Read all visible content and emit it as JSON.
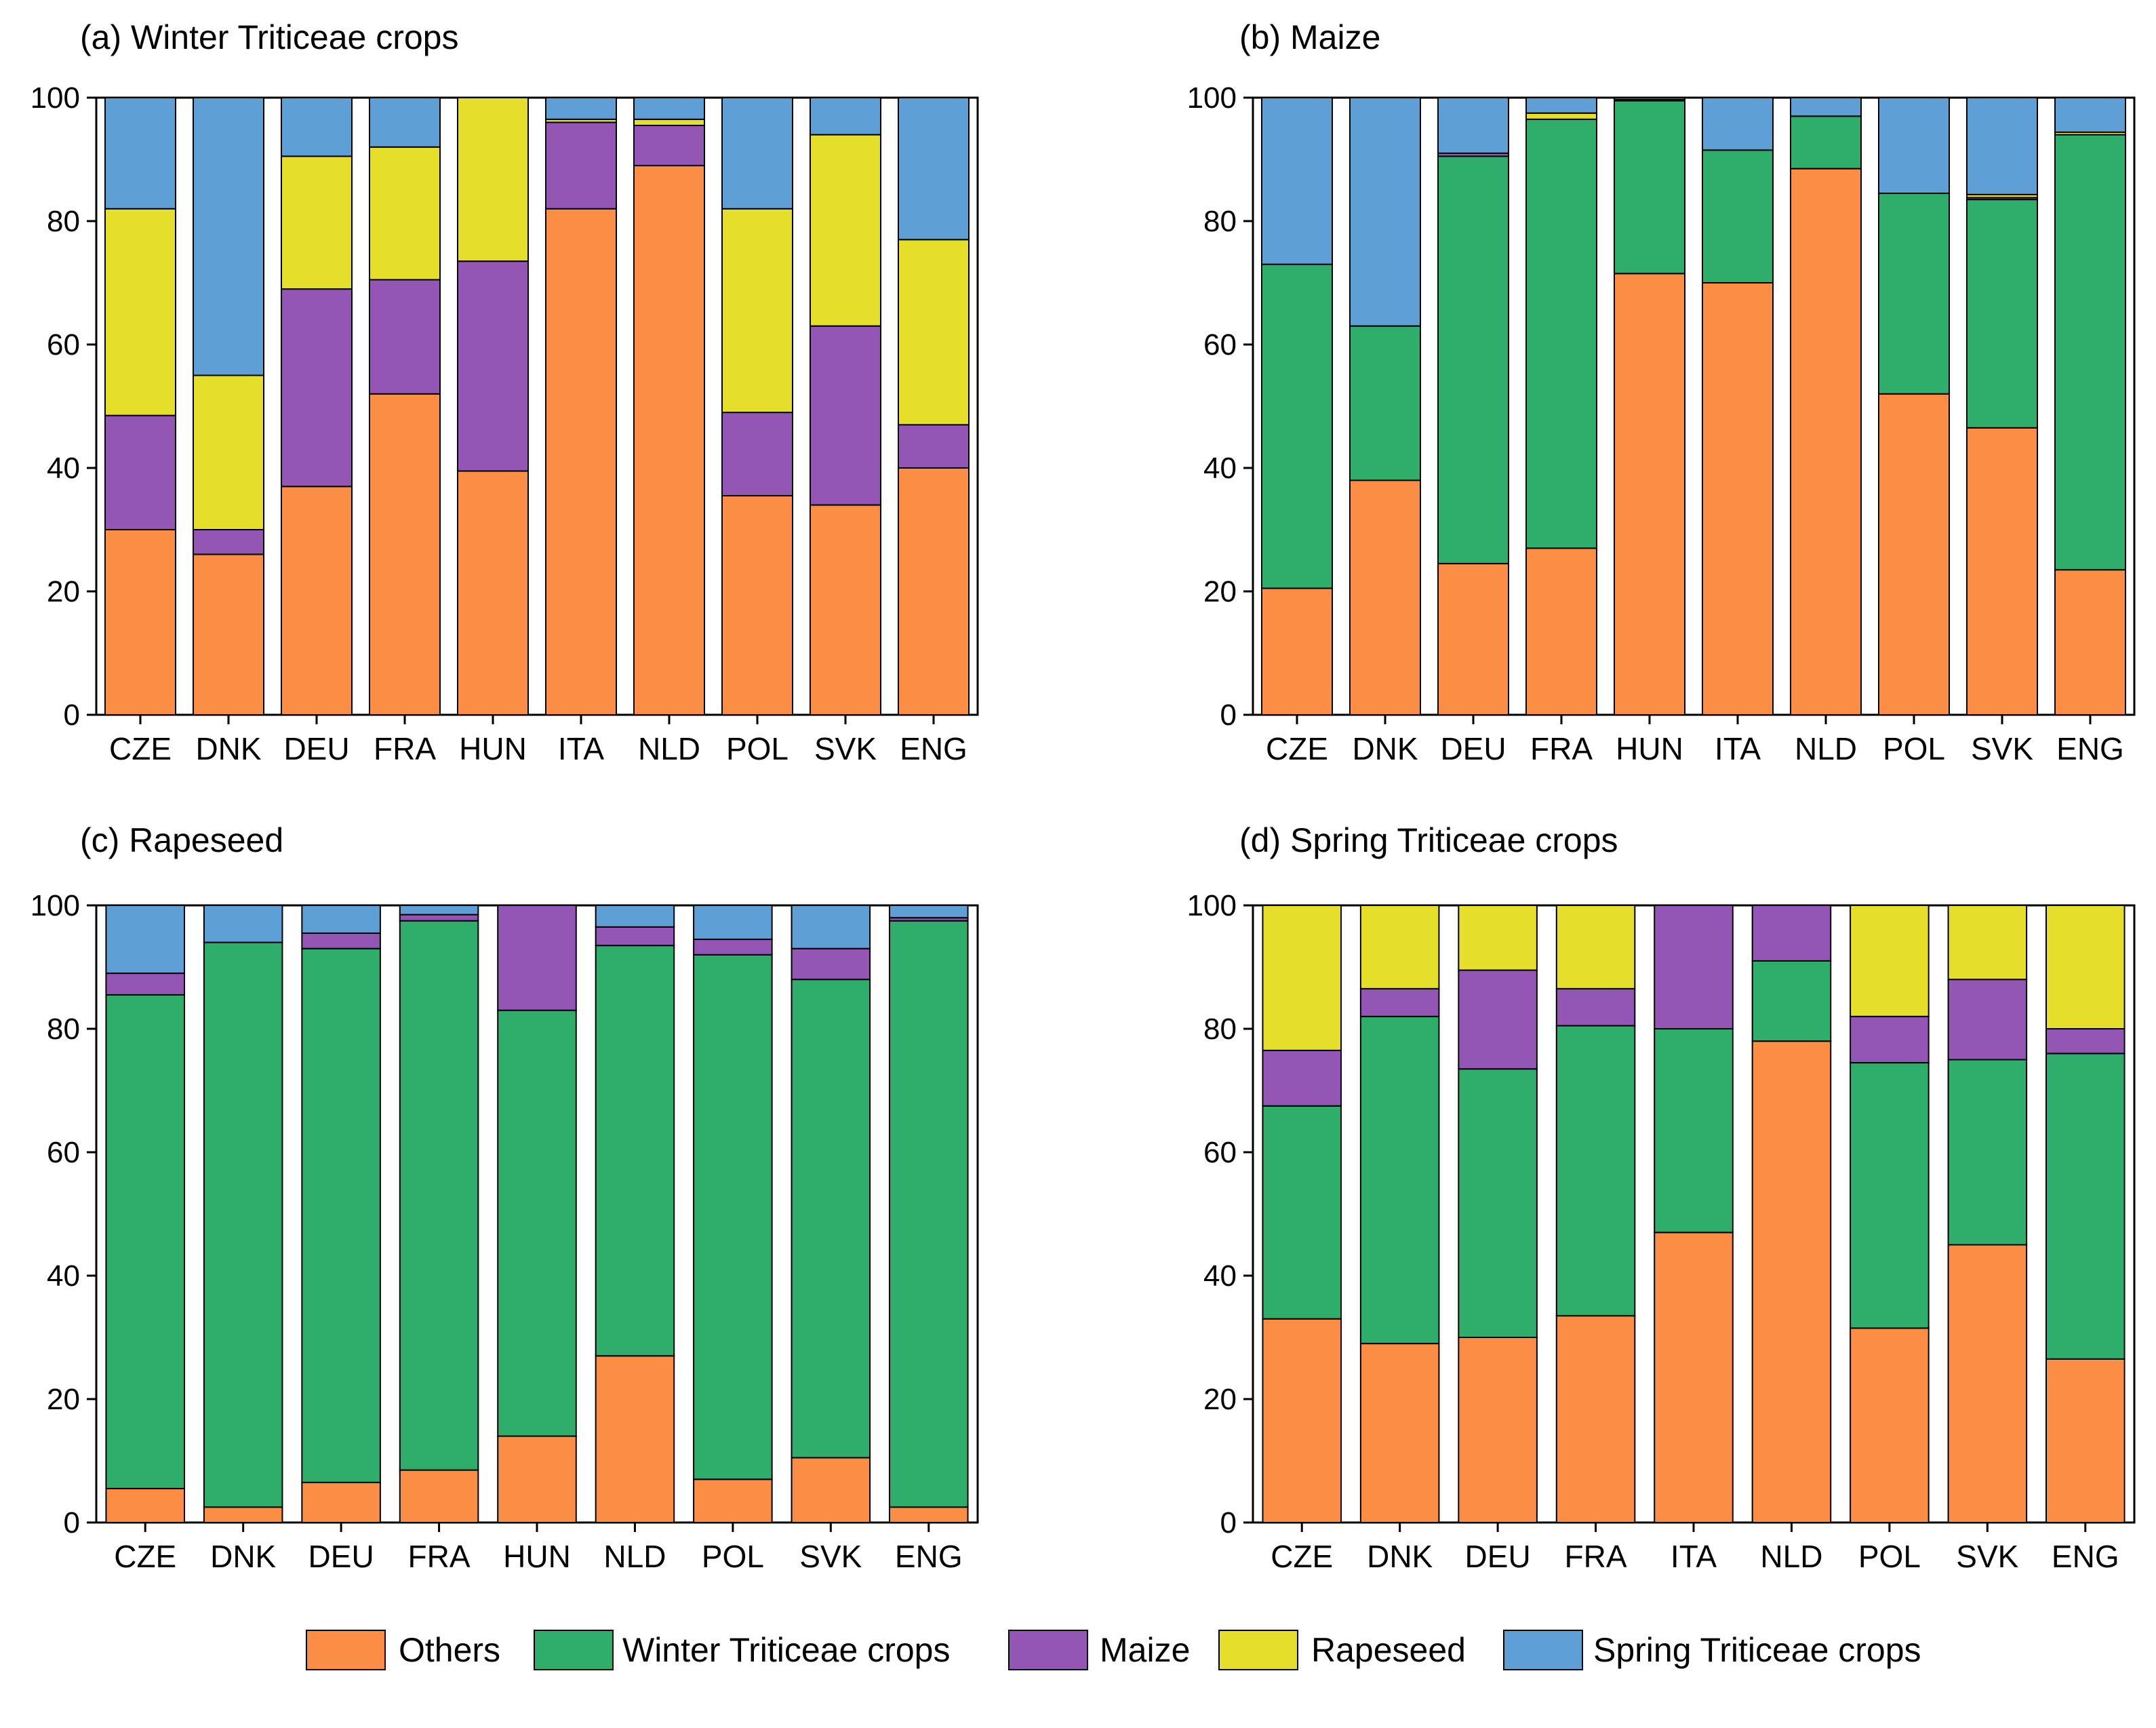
{
  "colors": {
    "Others": "#fb8d44",
    "Winter Triticeae crops": "#2ead6b",
    "Maize": "#9356b4",
    "Rapeseed": "#e5df2c",
    "Spring Triticeae crops": "#5e9fd6"
  },
  "legend": [
    "Others",
    "Winter Triticeae crops",
    "Maize",
    "Rapeseed",
    "Spring Triticeae crops"
  ],
  "chart_data": [
    {
      "type": "bar",
      "stacked": true,
      "title": "(a) Winter Triticeae crops",
      "ylim": [
        0,
        100
      ],
      "yticks": [
        "0",
        "20",
        "40",
        "60",
        "80",
        "100"
      ],
      "categories": [
        "CZE",
        "DNK",
        "DEU",
        "FRA",
        "HUN",
        "ITA",
        "NLD",
        "POL",
        "SVK",
        "ENG"
      ],
      "series": [
        {
          "name": "Others",
          "values": [
            30,
            26,
            37,
            52,
            39.5,
            82,
            89,
            35.5,
            34,
            40
          ]
        },
        {
          "name": "Winter Triticeae crops",
          "values": [
            0,
            0,
            0,
            0,
            0,
            0,
            0,
            0,
            0,
            0
          ]
        },
        {
          "name": "Maize",
          "values": [
            18.5,
            4,
            32,
            18.5,
            34,
            14,
            6.5,
            13.5,
            29,
            7
          ]
        },
        {
          "name": "Rapeseed",
          "values": [
            33.5,
            25,
            21.5,
            21.5,
            26.5,
            0.5,
            1,
            33,
            31,
            30
          ]
        },
        {
          "name": "Spring Triticeae crops",
          "values": [
            18,
            45,
            9.5,
            8,
            0,
            3.5,
            3.5,
            18,
            6,
            23
          ]
        }
      ]
    },
    {
      "type": "bar",
      "stacked": true,
      "title": "(b) Maize",
      "ylim": [
        0,
        100
      ],
      "yticks": [
        "0",
        "20",
        "40",
        "60",
        "80",
        "100"
      ],
      "categories": [
        "CZE",
        "DNK",
        "DEU",
        "FRA",
        "HUN",
        "ITA",
        "NLD",
        "POL",
        "SVK",
        "ENG"
      ],
      "series": [
        {
          "name": "Others",
          "values": [
            20.5,
            38,
            24.5,
            27,
            71.5,
            70,
            88.5,
            52,
            46.5,
            23.5
          ]
        },
        {
          "name": "Winter Triticeae crops",
          "values": [
            52.5,
            25,
            66,
            69.5,
            28,
            21.5,
            8.5,
            32.5,
            37,
            70.5
          ]
        },
        {
          "name": "Maize",
          "values": [
            0,
            0,
            0.5,
            0,
            0,
            0,
            0,
            0,
            0.3,
            0
          ]
        },
        {
          "name": "Rapeseed",
          "values": [
            0,
            0,
            0,
            1,
            0.2,
            0,
            0,
            0,
            0.5,
            0.4
          ]
        },
        {
          "name": "Spring Triticeae crops",
          "values": [
            27,
            37,
            9,
            2.5,
            0.3,
            8.5,
            3,
            15.5,
            15.7,
            5.6
          ]
        }
      ]
    },
    {
      "type": "bar",
      "stacked": true,
      "title": "(c) Rapeseed",
      "ylim": [
        0,
        100
      ],
      "yticks": [
        "0",
        "20",
        "40",
        "60",
        "80",
        "100"
      ],
      "categories": [
        "CZE",
        "DNK",
        "DEU",
        "FRA",
        "HUN",
        "NLD",
        "POL",
        "SVK",
        "ENG"
      ],
      "series": [
        {
          "name": "Others",
          "values": [
            5.5,
            2.5,
            6.5,
            8.5,
            14,
            27,
            7,
            10.5,
            2.5
          ]
        },
        {
          "name": "Winter Triticeae crops",
          "values": [
            80,
            91.5,
            86.5,
            89,
            69,
            66.5,
            85,
            77.5,
            95
          ]
        },
        {
          "name": "Maize",
          "values": [
            3.5,
            0,
            2.5,
            1,
            17,
            3,
            2.5,
            5,
            0.5
          ]
        },
        {
          "name": "Rapeseed",
          "values": [
            0,
            0,
            0,
            0,
            0,
            0,
            0,
            0,
            0
          ]
        },
        {
          "name": "Spring Triticeae crops",
          "values": [
            11,
            6,
            4.5,
            1.5,
            0,
            3.5,
            5.5,
            7,
            2
          ]
        }
      ]
    },
    {
      "type": "bar",
      "stacked": true,
      "title": "(d) Spring Triticeae crops",
      "ylim": [
        0,
        100
      ],
      "yticks": [
        "0",
        "20",
        "40",
        "60",
        "80",
        "100"
      ],
      "categories": [
        "CZE",
        "DNK",
        "DEU",
        "FRA",
        "ITA",
        "NLD",
        "POL",
        "SVK",
        "ENG"
      ],
      "series": [
        {
          "name": "Others",
          "values": [
            33,
            29,
            30,
            33.5,
            47,
            78,
            31.5,
            45,
            26.5
          ]
        },
        {
          "name": "Winter Triticeae crops",
          "values": [
            34.5,
            53,
            43.5,
            47,
            33,
            13,
            43,
            30,
            49.5
          ]
        },
        {
          "name": "Maize",
          "values": [
            9,
            4.5,
            16,
            6,
            20,
            9,
            7.5,
            13,
            4
          ]
        },
        {
          "name": "Rapeseed",
          "values": [
            23.5,
            13.5,
            10.5,
            13.5,
            0,
            0,
            18,
            12,
            20
          ]
        },
        {
          "name": "Spring Triticeae crops",
          "values": [
            0,
            0,
            0,
            0,
            0,
            0,
            0,
            0,
            0
          ]
        }
      ]
    }
  ]
}
